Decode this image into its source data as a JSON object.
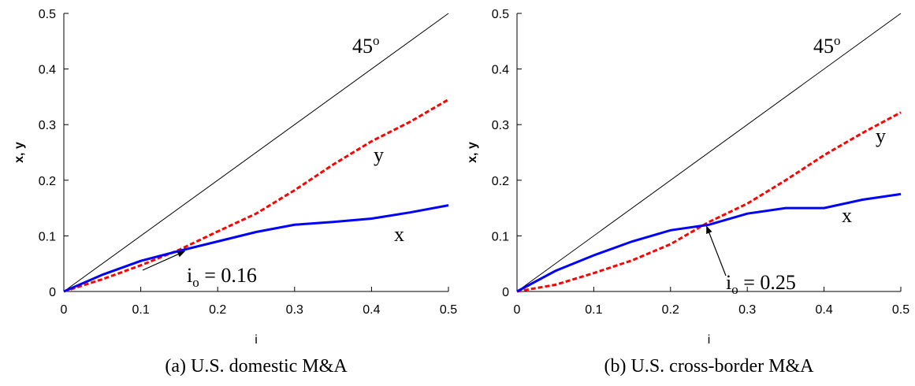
{
  "chart_data": [
    {
      "type": "line",
      "caption": "(a) U.S. domestic M&A",
      "xlabel": "i",
      "ylabel": "x, y",
      "xlim": [
        0,
        0.5
      ],
      "ylim": [
        0,
        0.5
      ],
      "xticks": [
        "0",
        "0.1",
        "0.2",
        "0.3",
        "0.4",
        "0.5"
      ],
      "yticks": [
        "0",
        "0.1",
        "0.2",
        "0.3",
        "0.4",
        "0.5"
      ],
      "grid": false,
      "series": [
        {
          "name": "45o",
          "color": "#000000",
          "style": "solid-thin",
          "x": [
            0,
            0.5
          ],
          "y": [
            0,
            0.5
          ]
        },
        {
          "name": "y",
          "color": "#ff0000",
          "style": "dashed",
          "x": [
            0,
            0.05,
            0.1,
            0.15,
            0.2,
            0.25,
            0.3,
            0.35,
            0.4,
            0.45,
            0.5
          ],
          "y": [
            0,
            0.022,
            0.047,
            0.075,
            0.108,
            0.14,
            0.182,
            0.228,
            0.27,
            0.305,
            0.345
          ]
        },
        {
          "name": "x",
          "color": "#0000ff",
          "style": "solid-thick",
          "x": [
            0,
            0.05,
            0.1,
            0.15,
            0.2,
            0.25,
            0.3,
            0.35,
            0.4,
            0.45,
            0.5
          ],
          "y": [
            0,
            0.03,
            0.055,
            0.073,
            0.09,
            0.107,
            0.12,
            0.125,
            0.131,
            0.142,
            0.155
          ]
        }
      ],
      "annotations": {
        "diag_label_main": "45",
        "diag_label_sup": "o",
        "y_label": "y",
        "x_label": "x",
        "crossover_prefix": "i",
        "crossover_sub": "o",
        "crossover_text": " = 0.16",
        "crossover_point": [
          0.155,
          0.075
        ]
      }
    },
    {
      "type": "line",
      "caption": "(b) U.S. cross-border M&A",
      "xlabel": "i",
      "ylabel": "x, y",
      "xlim": [
        0,
        0.5
      ],
      "ylim": [
        0,
        0.5
      ],
      "xticks": [
        "0",
        "0.1",
        "0.2",
        "0.3",
        "0.4",
        "0.5"
      ],
      "yticks": [
        "0",
        "0.1",
        "0.2",
        "0.3",
        "0.4",
        "0.5"
      ],
      "grid": false,
      "series": [
        {
          "name": "45o",
          "color": "#000000",
          "style": "solid-thin",
          "x": [
            0,
            0.5
          ],
          "y": [
            0,
            0.5
          ]
        },
        {
          "name": "y",
          "color": "#ff0000",
          "style": "dashed",
          "x": [
            0,
            0.05,
            0.1,
            0.15,
            0.2,
            0.25,
            0.3,
            0.35,
            0.4,
            0.45,
            0.5
          ],
          "y": [
            0,
            0.012,
            0.033,
            0.056,
            0.085,
            0.125,
            0.158,
            0.2,
            0.245,
            0.285,
            0.322
          ]
        },
        {
          "name": "x",
          "color": "#0000ff",
          "style": "solid-thick",
          "x": [
            0,
            0.05,
            0.1,
            0.15,
            0.2,
            0.25,
            0.3,
            0.35,
            0.4,
            0.45,
            0.5
          ],
          "y": [
            0,
            0.037,
            0.065,
            0.09,
            0.11,
            0.12,
            0.14,
            0.15,
            0.15,
            0.165,
            0.175
          ]
        }
      ],
      "annotations": {
        "diag_label_main": "45",
        "diag_label_sup": "o",
        "y_label": "y",
        "x_label": "x",
        "crossover_prefix": "i",
        "crossover_sub": "o",
        "crossover_text": " = 0.25",
        "crossover_point": [
          0.245,
          0.12
        ]
      }
    }
  ]
}
